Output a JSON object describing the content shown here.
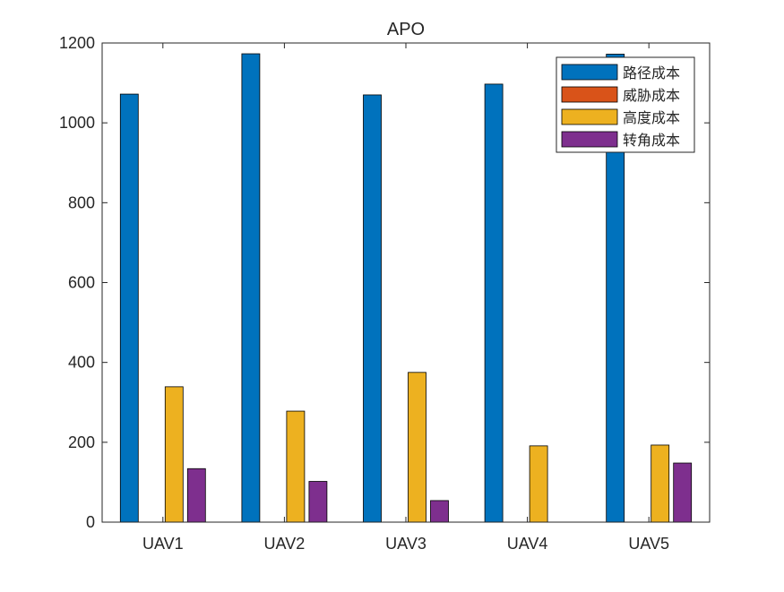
{
  "chart_data": {
    "type": "bar",
    "title": "APO",
    "xlabel": "",
    "ylabel": "",
    "ylim": [
      0,
      1200
    ],
    "yticks": [
      0,
      200,
      400,
      600,
      800,
      1000,
      1200
    ],
    "categories": [
      "UAV1",
      "UAV2",
      "UAV3",
      "UAV4",
      "UAV5"
    ],
    "series": [
      {
        "name": "路径成本",
        "color": "#0072BD",
        "values": [
          1072,
          1173,
          1070,
          1097,
          1172
        ]
      },
      {
        "name": "威胁成本",
        "color": "#D95319",
        "values": [
          0,
          0,
          0,
          0,
          0
        ]
      },
      {
        "name": "高度成本",
        "color": "#EDB120",
        "values": [
          339,
          278,
          375,
          191,
          193
        ]
      },
      {
        "name": "转角成本",
        "color": "#7E2F8E",
        "values": [
          134,
          102,
          54,
          0,
          148
        ]
      }
    ],
    "legend_position": "top-right",
    "grid": false
  }
}
